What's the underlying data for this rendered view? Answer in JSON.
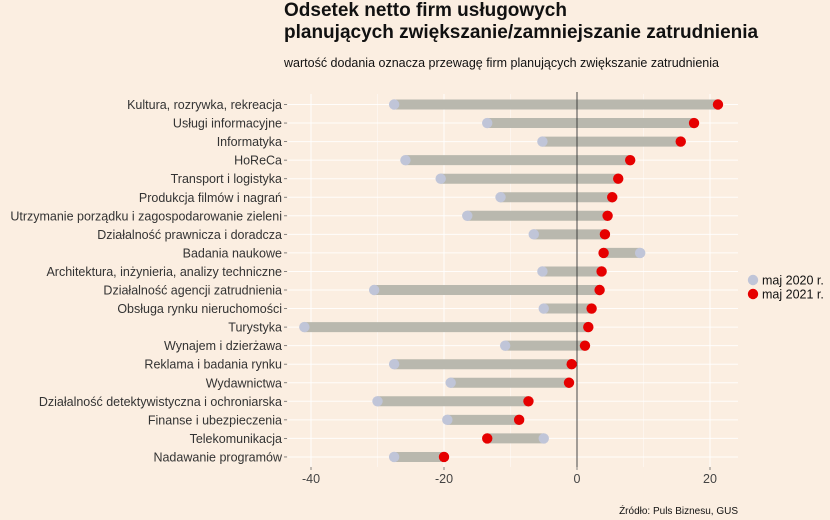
{
  "chart_data": {
    "type": "dumbbell",
    "title_lines": [
      "Odsetek netto firm usługowych",
      "planujących zwiększanie/zamniejszanie zatrudnienia"
    ],
    "subtitle": "wartość dodania oznacza przewagę firm planujących zwiększanie zatrudnienia",
    "source": "Źródło: Puls Biznesu, GUS",
    "xlabel": "",
    "ylabel": "",
    "xlim": [
      -41,
      22
    ],
    "xticks": [
      -40,
      -20,
      0,
      20
    ],
    "grid": true,
    "legend_position": "right",
    "series": [
      {
        "name": "maj 2020 r.",
        "color": "#c0c5d8"
      },
      {
        "name": "maj 2021 r.",
        "color": "#e60000"
      }
    ],
    "categories": [
      "Kultura, rozrywka, rekreacja",
      "Usługi informacyjne",
      "Informatyka",
      "HoReCa",
      "Transport i logistyka",
      "Produkcja filmów i nagrań",
      "Utrzymanie porządku i zagospodarowanie zieleni",
      "Działalność prawnicza i doradcza",
      "Badania naukowe",
      "Architektura, inżynieria, analizy techniczne",
      "Działalność agencji zatrudnienia",
      "Obsługa rynku nieruchomości",
      "Turystyka",
      "Wynajem i dzierżawa",
      "Reklama i badania rynku",
      "Wydawnictwa",
      "Działalność detektywistyczna i ochroniarska",
      "Finanse i ubezpieczenia",
      "Telekomunikacja",
      "Nadawanie programów"
    ],
    "values_2020": [
      -27.5,
      -13.5,
      -5.2,
      -25.8,
      -20.5,
      -11.5,
      -16.5,
      -6.5,
      9.5,
      -5.2,
      -30.5,
      -5.0,
      -41.0,
      -10.8,
      -27.5,
      -19.0,
      -30.0,
      -19.5,
      -5.0,
      -27.5
    ],
    "values_2021": [
      21.2,
      17.6,
      15.6,
      8.0,
      6.2,
      5.3,
      4.6,
      4.2,
      4.0,
      3.7,
      3.4,
      2.2,
      1.7,
      1.2,
      -0.8,
      -1.2,
      -7.3,
      -8.7,
      -13.5,
      -20.0
    ]
  }
}
